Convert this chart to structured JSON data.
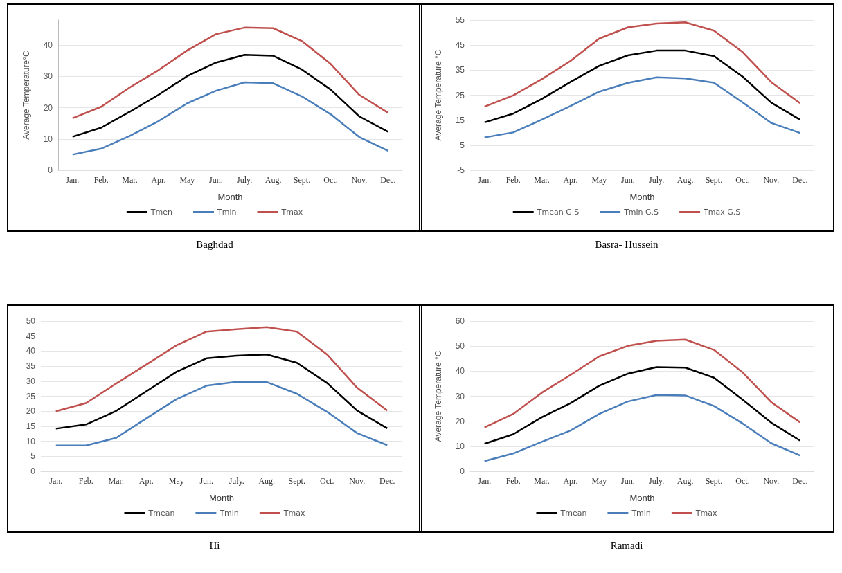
{
  "chart_data": [
    {
      "type": "line",
      "xlabel": "Month",
      "ylabel": "Average Temperature°C",
      "annotations": [
        "Baghdad"
      ],
      "categories": [
        "Jan.",
        "Feb.",
        "Mar.",
        "Apr.",
        "May",
        "Jun.",
        "July.",
        "Aug.",
        "Sept.",
        "Oct.",
        "Nov.",
        "Dec."
      ],
      "ylim": [
        0,
        48
      ],
      "yticks": [
        0,
        10,
        20,
        30,
        40
      ],
      "grid": "y",
      "legend": "bottom",
      "marker": "none",
      "line_style": "solid",
      "series": [
        {
          "name": "Tmen",
          "color": "#000000",
          "values": [
            10.7,
            13.6,
            18.7,
            24.1,
            30.1,
            34.4,
            36.9,
            36.6,
            32.2,
            25.8,
            17.2,
            12.3
          ]
        },
        {
          "name": "Tmin",
          "color": "#4a7ebb",
          "values": [
            5,
            6.9,
            11,
            15.7,
            21.4,
            25.4,
            28.1,
            27.8,
            23.6,
            17.9,
            10.6,
            6.2
          ]
        },
        {
          "name": "Tmax",
          "color": "#c0504d",
          "values": [
            16.6,
            20.3,
            26.5,
            32,
            38.3,
            43.5,
            45.6,
            45.4,
            41.3,
            34,
            24.1,
            18.4
          ]
        }
      ]
    },
    {
      "type": "line",
      "xlabel": "Month",
      "ylabel": "Average Temperature °C",
      "annotations": [
        "Basra- Hussein"
      ],
      "categories": [
        "Jan.",
        "Feb.",
        "Mar.",
        "Apr.",
        "May",
        "Jun.",
        "July.",
        "Aug.",
        "Sept.",
        "Oct.",
        "Nov.",
        "Dec."
      ],
      "ylim": [
        -5,
        55
      ],
      "yticks": [
        -5,
        5,
        15,
        25,
        35,
        45,
        55
      ],
      "grid": "y",
      "legend": "bottom",
      "marker": "none",
      "line_style": "solid",
      "series": [
        {
          "name": "Tmean G.S",
          "color": "#000000",
          "values": [
            14.1,
            17.6,
            23.5,
            30.3,
            36.7,
            40.9,
            42.8,
            42.8,
            40.6,
            32.4,
            22,
            15.2
          ]
        },
        {
          "name": "Tmin G.S",
          "color": "#4a7ebb",
          "values": [
            8.1,
            10.1,
            15.2,
            20.7,
            26.4,
            29.9,
            32.1,
            31.7,
            30,
            22.1,
            13.9,
            9.9
          ]
        },
        {
          "name": "Tmax G.S",
          "color": "#c0504d",
          "values": [
            20.4,
            24.9,
            31.4,
            38.7,
            47.6,
            52.1,
            53.6,
            54.1,
            50.8,
            42.2,
            30.2,
            21.8
          ]
        }
      ]
    },
    {
      "type": "line",
      "xlabel": "Month",
      "annotations": [
        "Hi"
      ],
      "categories": [
        "Jan.",
        "Feb.",
        "Mar.",
        "Apr.",
        "May",
        "Jun.",
        "July.",
        "Aug.",
        "Sept.",
        "Oct.",
        "Nov.",
        "Dec."
      ],
      "ylim": [
        0,
        50
      ],
      "yticks": [
        0,
        5,
        10,
        15,
        20,
        25,
        30,
        35,
        40,
        45,
        50
      ],
      "grid": "y",
      "legend": "bottom",
      "marker": "none",
      "line_style": "solid",
      "series": [
        {
          "name": "Tmean",
          "color": "#000000",
          "values": [
            14.2,
            15.6,
            20.1,
            26.6,
            33.1,
            37.6,
            38.5,
            38.9,
            36.1,
            29.4,
            20.2,
            14.3
          ]
        },
        {
          "name": "Tmin",
          "color": "#4a7ebb",
          "values": [
            8.6,
            8.6,
            11.1,
            17.6,
            24,
            28.5,
            29.8,
            29.7,
            25.8,
            19.8,
            12.7,
            8.7
          ]
        },
        {
          "name": "Tmax",
          "color": "#c0504d",
          "values": [
            20,
            22.7,
            29.2,
            35.5,
            41.9,
            46.5,
            47.3,
            48,
            46.5,
            38.9,
            27.8,
            20.2
          ]
        }
      ]
    },
    {
      "type": "line",
      "xlabel": "Month",
      "ylabel": "Average Temperature °C",
      "annotations": [
        "Ramadi"
      ],
      "categories": [
        "Jan.",
        "Feb.",
        "Mar.",
        "Apr.",
        "May",
        "Jun.",
        "July.",
        "Aug.",
        "Sept.",
        "Oct.",
        "Nov.",
        "Dec."
      ],
      "ylim": [
        0,
        60
      ],
      "yticks": [
        0,
        10,
        20,
        30,
        40,
        50,
        60
      ],
      "grid": "y",
      "legend": "bottom",
      "marker": "none",
      "line_style": "solid",
      "series": [
        {
          "name": "Tmean",
          "color": "#000000",
          "values": [
            11,
            14.8,
            21.6,
            27.2,
            34.2,
            39,
            41.6,
            41.4,
            37.4,
            28.6,
            19.4,
            12.3
          ]
        },
        {
          "name": "Tmin",
          "color": "#4a7ebb",
          "values": [
            4.1,
            7.1,
            11.8,
            16.3,
            22.9,
            27.9,
            30.5,
            30.3,
            26.1,
            19.1,
            11.2,
            6.3
          ]
        },
        {
          "name": "Tmax",
          "color": "#c0504d",
          "values": [
            17.5,
            22.9,
            31.4,
            38.5,
            45.9,
            50.1,
            52.1,
            52.6,
            48.5,
            39.5,
            27.6,
            19.6
          ]
        }
      ]
    }
  ]
}
